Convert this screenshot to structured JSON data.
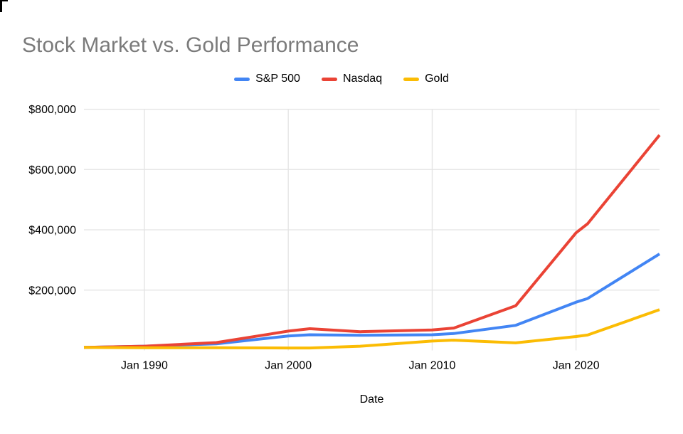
{
  "header": {
    "title": "Stock Market vs. Gold Performance",
    "title_color": "#7b7b7b"
  },
  "legend": {
    "items": [
      {
        "label": "S&P 500",
        "color": "#4285F4"
      },
      {
        "label": "Nasdaq",
        "color": "#EA4335"
      },
      {
        "label": "Gold",
        "color": "#FBBC04"
      }
    ]
  },
  "chart_data": {
    "type": "line",
    "title": "Stock Market vs. Gold Performance",
    "xlabel": "Date",
    "ylabel": "",
    "x_unit": "decimal_year",
    "x_range": [
      1985.8,
      2025.8
    ],
    "y_range": [
      0,
      800000
    ],
    "grid": {
      "color": "#e3e3e3",
      "horizontal": true,
      "vertical": true,
      "zero_baseline": false
    },
    "legend_position": "top-center",
    "x_ticks": [
      {
        "value": 1990,
        "label": "Jan 1990"
      },
      {
        "value": 2000,
        "label": "Jan 2000"
      },
      {
        "value": 2010,
        "label": "Jan 2010"
      },
      {
        "value": 2020,
        "label": "Jan 2020"
      }
    ],
    "y_ticks": [
      {
        "value": 200000,
        "label": "$200,000"
      },
      {
        "value": 400000,
        "label": "$400,000"
      },
      {
        "value": 600000,
        "label": "$600,000"
      },
      {
        "value": 800000,
        "label": "$800,000"
      }
    ],
    "x": [
      1985.8,
      1990,
      1995,
      2000,
      2001.5,
      2005,
      2010,
      2011.5,
      2015.8,
      2020,
      2020.8,
      2025.8
    ],
    "series": [
      {
        "name": "S&P 500",
        "color": "#4285F4",
        "values": [
          10000,
          14000,
          22000,
          48000,
          52000,
          50000,
          52000,
          56000,
          83000,
          160000,
          172000,
          320000
        ]
      },
      {
        "name": "Nasdaq",
        "color": "#EA4335",
        "values": [
          10000,
          14000,
          26000,
          64000,
          72000,
          62000,
          68000,
          74000,
          148000,
          390000,
          420000,
          714000
        ]
      },
      {
        "name": "Gold",
        "color": "#FBBC04",
        "values": [
          10000,
          9000,
          9000,
          8000,
          8000,
          14000,
          31000,
          34000,
          25000,
          46000,
          51000,
          135000
        ]
      }
    ]
  }
}
